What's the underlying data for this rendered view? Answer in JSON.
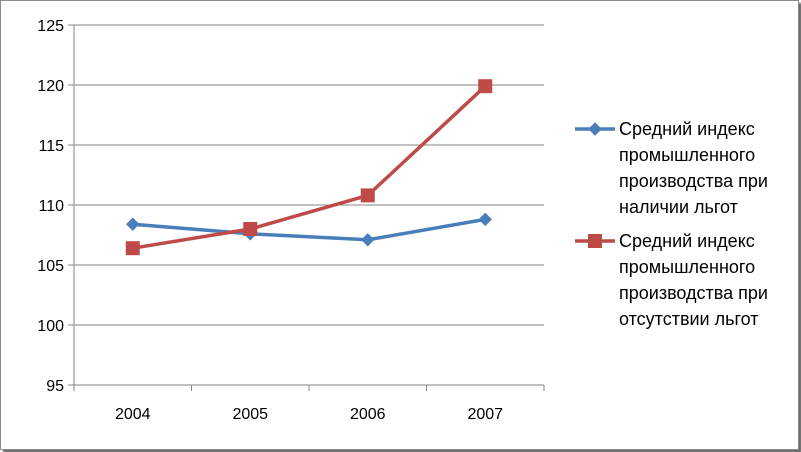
{
  "chart_data": {
    "type": "line",
    "categories": [
      "2004",
      "2005",
      "2006",
      "2007"
    ],
    "ylim": [
      95,
      125
    ],
    "yticks": [
      95,
      100,
      105,
      110,
      115,
      120,
      125
    ],
    "grid": "horizontal",
    "legend_position": "right",
    "series": [
      {
        "name": "Средний индекс промышленного производства при наличии льгот",
        "legend_lines": [
          "Средний индекс",
          "промышленного",
          "производства при",
          "наличии льгот"
        ],
        "values": [
          108.4,
          107.6,
          107.1,
          108.8
        ],
        "color": "#4a7ebb",
        "marker": "diamond"
      },
      {
        "name": "Средний индекс промышленного производства при отсутствии льгот",
        "legend_lines": [
          "Средний индекс",
          "промышленного",
          "производства при",
          "отсутствии льгот"
        ],
        "values": [
          106.4,
          108.0,
          110.8,
          119.9
        ],
        "color": "#be4b48",
        "marker": "square"
      }
    ]
  }
}
